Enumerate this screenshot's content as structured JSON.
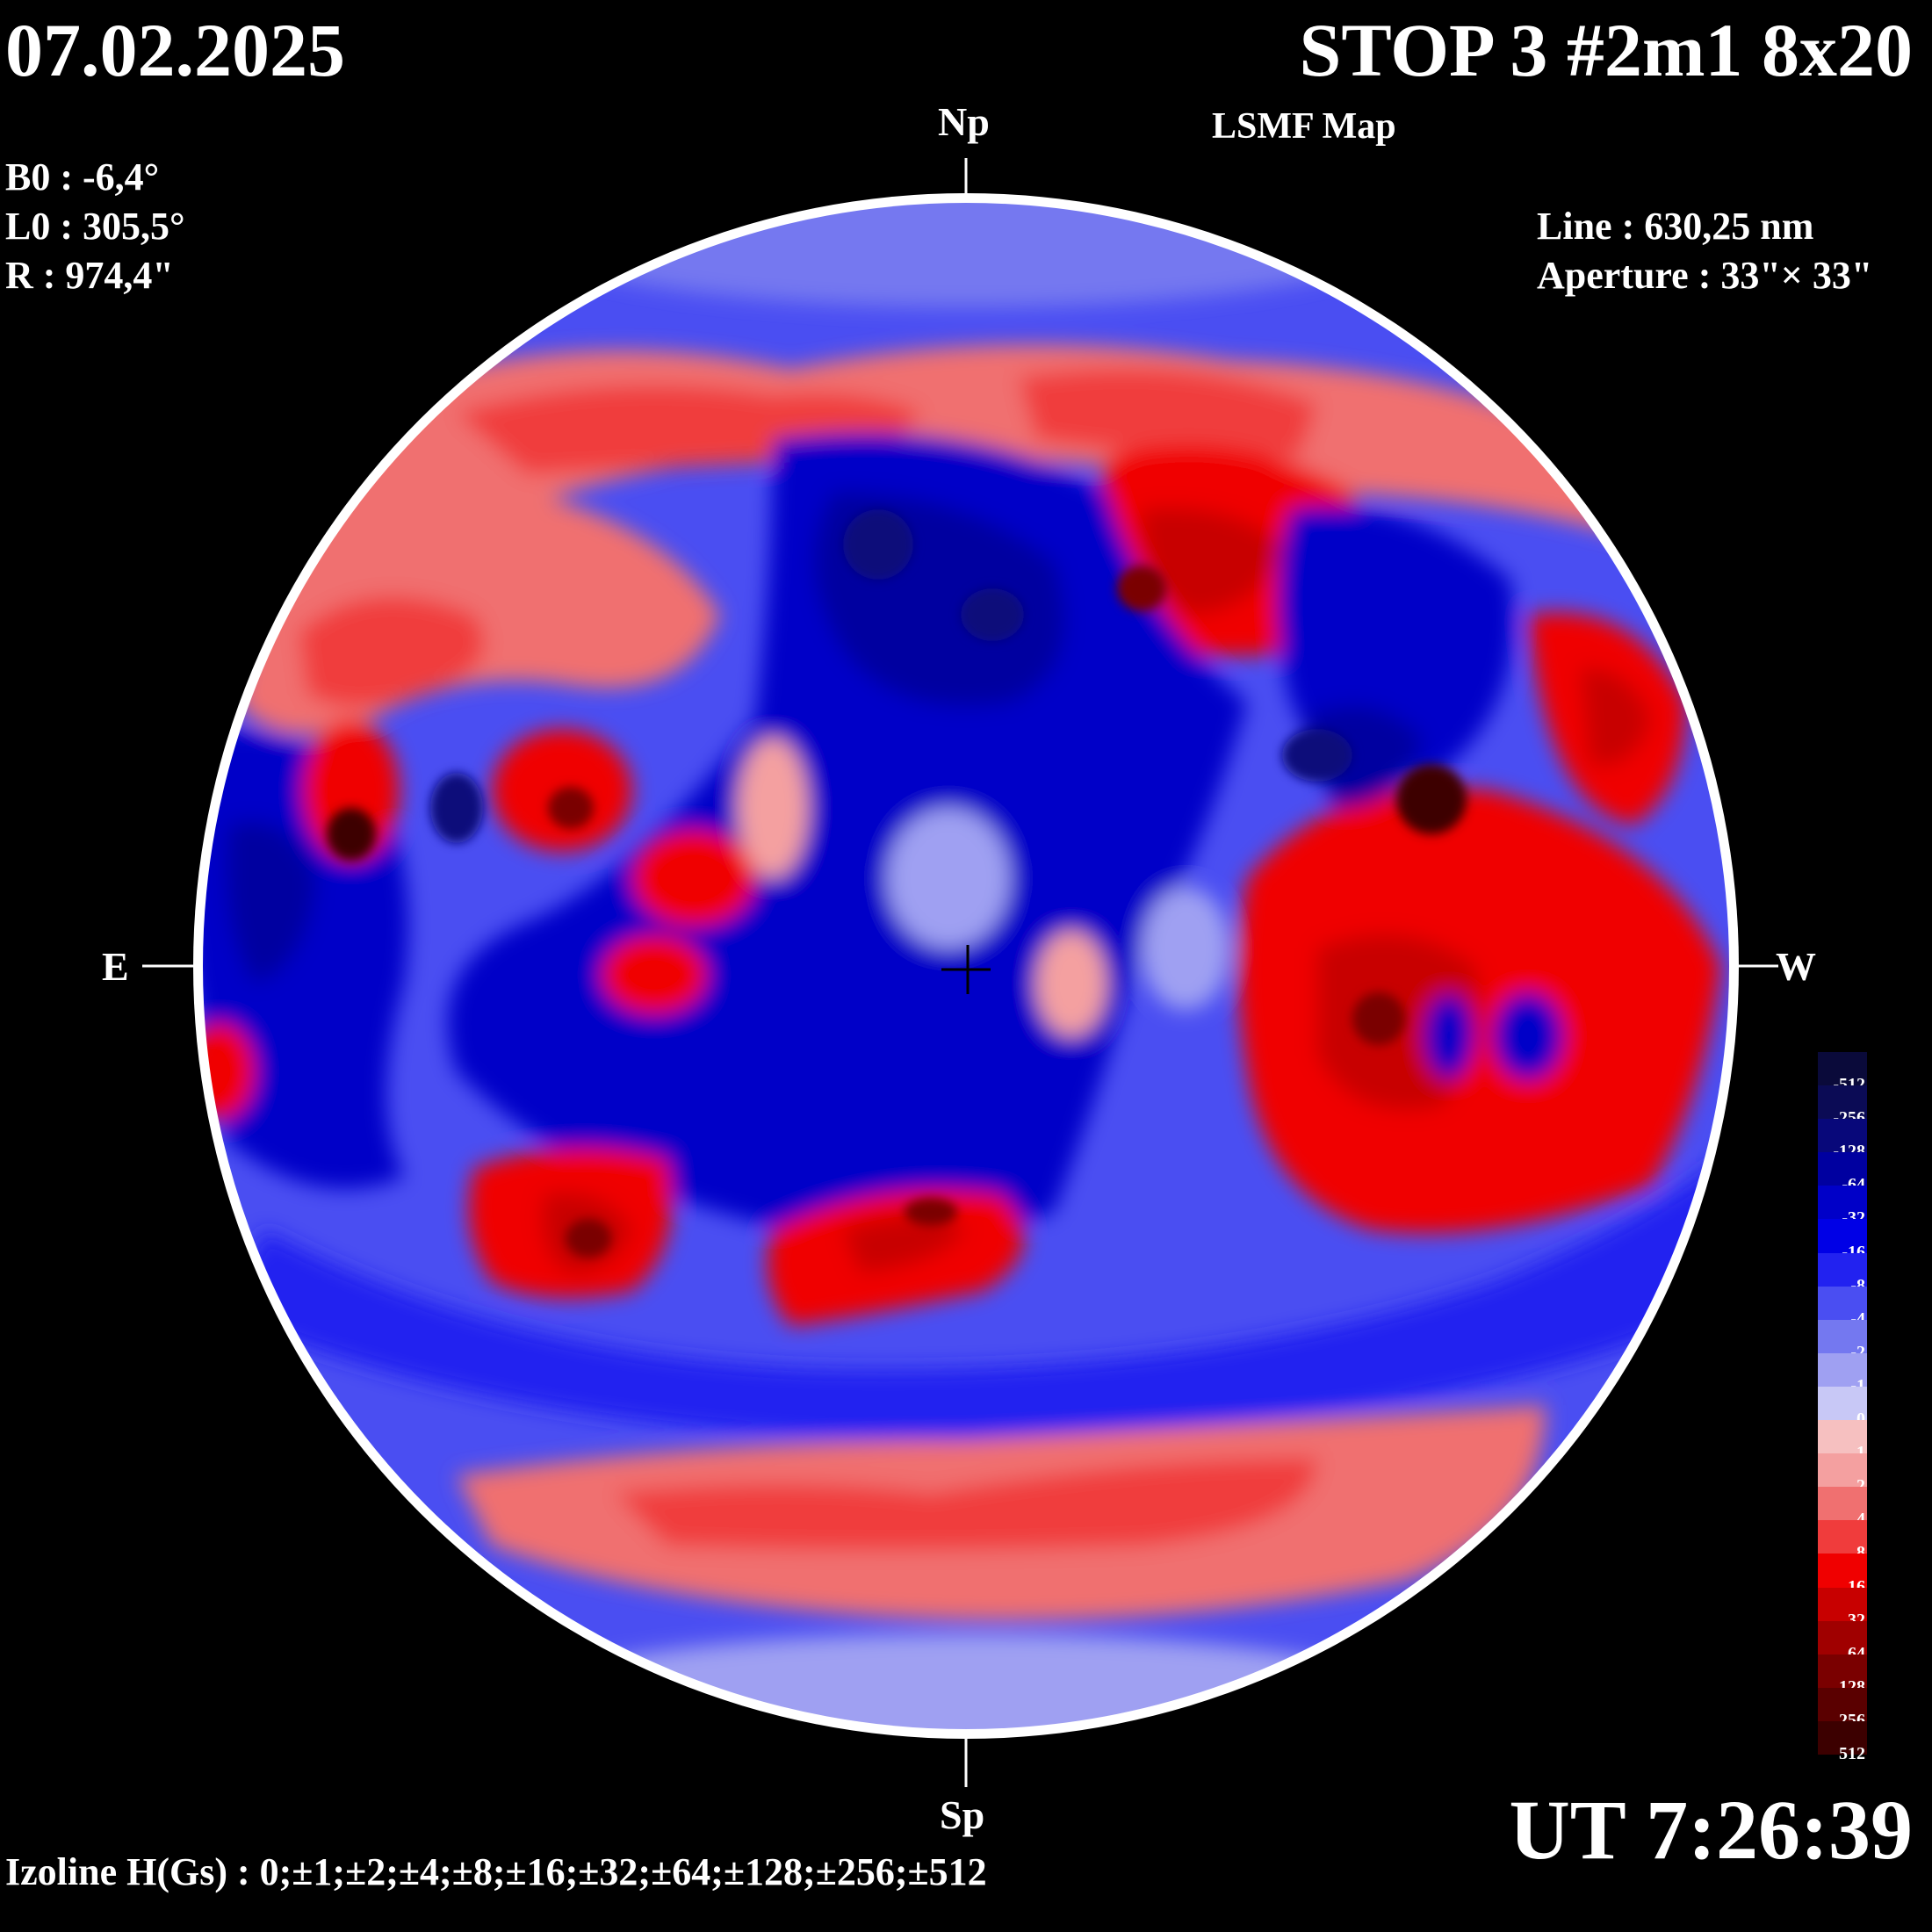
{
  "header": {
    "date": "07.02.2025",
    "title": "STOP 3 #2m1 8x20",
    "subtitle": "LSMF  Map"
  },
  "params": {
    "b0": "B0 : -6,4°",
    "l0": "L0 : 305,5°",
    "r": "R  : 974,4\""
  },
  "instrument": {
    "line": "Line :  630,25 nm",
    "aperture": "Aperture : 33\"× 33\""
  },
  "directions": {
    "north": "Np",
    "south": "Sp",
    "east": "E",
    "west": "W"
  },
  "time": "UT 7:26:39",
  "izoline": "Izoline H(Gs) : 0;±1;±2;±4;±8;±16;±32;±64;±128;±256;±512",
  "colorbar": {
    "levels": [
      {
        "label": "-512",
        "color": "#0a0a3a"
      },
      {
        "label": "-256",
        "color": "#0b0b55"
      },
      {
        "label": "-128",
        "color": "#08087a"
      },
      {
        "label": "-64",
        "color": "#0000a0"
      },
      {
        "label": "-32",
        "color": "#0000c8"
      },
      {
        "label": "-16",
        "color": "#0000e6"
      },
      {
        "label": "-8",
        "color": "#2222f0"
      },
      {
        "label": "-4",
        "color": "#4a4ef2"
      },
      {
        "label": "-2",
        "color": "#7478f0"
      },
      {
        "label": "-1",
        "color": "#9fa0f2"
      },
      {
        "label": "0",
        "color": "#c8c8f6"
      },
      {
        "label": "1",
        "color": "#f6c0c0"
      },
      {
        "label": "2",
        "color": "#f4a0a0"
      },
      {
        "label": "4",
        "color": "#f07070"
      },
      {
        "label": "8",
        "color": "#f03c3c"
      },
      {
        "label": "16",
        "color": "#f00000"
      },
      {
        "label": "32",
        "color": "#c80000"
      },
      {
        "label": "64",
        "color": "#a00000"
      },
      {
        "label": "128",
        "color": "#7a0000"
      },
      {
        "label": "256",
        "color": "#5a0000"
      },
      {
        "label": "512",
        "color": "#3c0000"
      }
    ]
  }
}
